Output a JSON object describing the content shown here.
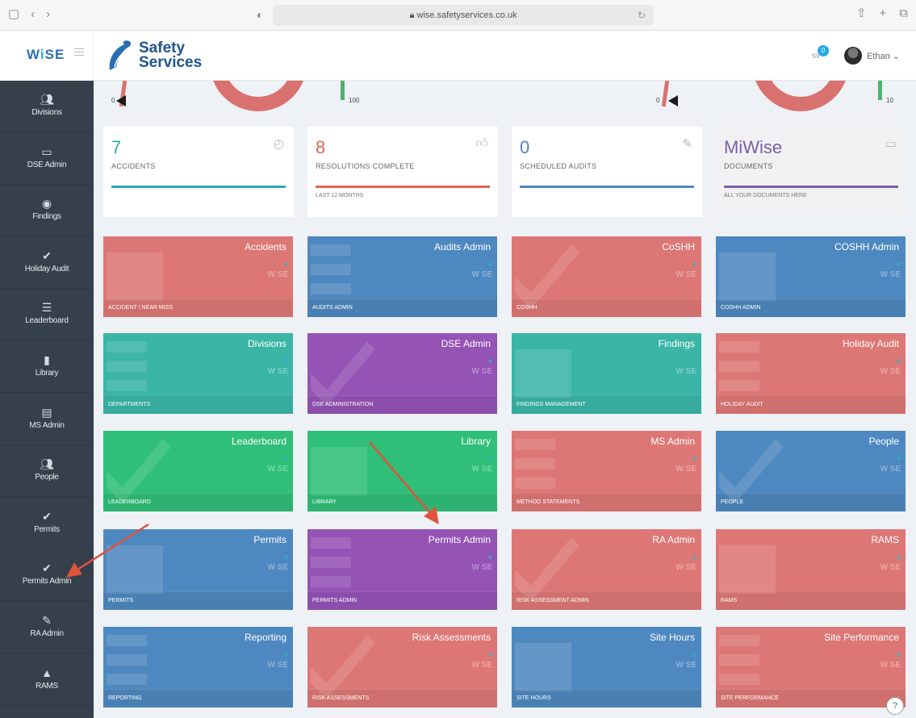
{
  "browser": {
    "url": "wise.safetyservices.co.uk",
    "lock_icon": "lock-icon"
  },
  "header": {
    "logo_text": "WiSE",
    "company_line1": "Safety",
    "company_line2": "Services",
    "notif_count": "0",
    "notif_label": "sv",
    "user_name": "Ethan ⌄"
  },
  "sidebar": {
    "items": [
      {
        "label": "Divisions",
        "icon": "people-icon"
      },
      {
        "label": "DSE Admin",
        "icon": "monitor-icon"
      },
      {
        "label": "Findings",
        "icon": "eye-icon"
      },
      {
        "label": "Holiday Audit",
        "icon": "check-icon"
      },
      {
        "label": "Leaderboard",
        "icon": "list-icon"
      },
      {
        "label": "Library",
        "icon": "book-icon"
      },
      {
        "label": "MS Admin",
        "icon": "document-icon"
      },
      {
        "label": "People",
        "icon": "people-icon"
      },
      {
        "label": "Permits",
        "icon": "check-icon"
      },
      {
        "label": "Permits Admin",
        "icon": "check-icon"
      },
      {
        "label": "RA Admin",
        "icon": "pencil-icon"
      },
      {
        "label": "RAMS",
        "icon": "warning-icon"
      }
    ]
  },
  "gauges": {
    "g1_min": "0",
    "g1_max": "100",
    "g2_min": "0",
    "g2_max": "10"
  },
  "stats": [
    {
      "value": "7",
      "label": "ACCIDENTS",
      "sub": "",
      "color": "#27a9b5"
    },
    {
      "value": "8",
      "label": "RESOLUTIONS COMPLETE",
      "sub": "LAST 12 MONTHS",
      "color": "#e2654f"
    },
    {
      "value": "0",
      "label": "SCHEDULED AUDITS",
      "sub": "",
      "color": "#4f86c3"
    },
    {
      "value": "MiWise",
      "label": "DOCUMENTS",
      "sub": "ALL YOUR DOCUMENTS HERE",
      "color": "#7b62a6"
    }
  ],
  "tiles": [
    {
      "title": "Accidents",
      "foot": "ACCIDENT / NEAR MISS",
      "color": "#dd7775"
    },
    {
      "title": "Audits Admin",
      "foot": "AUDITS ADMIN",
      "color": "#4e88c0"
    },
    {
      "title": "CoSHH",
      "foot": "COSHH",
      "color": "#dd7775"
    },
    {
      "title": "COSHH Admin",
      "foot": "COSHH ADMIN",
      "color": "#4e88c0"
    },
    {
      "title": "Divisions",
      "foot": "DEPARTMENTS",
      "color": "#3ab5a6"
    },
    {
      "title": "DSE Admin",
      "foot": "DSE ADMINISTRATION",
      "color": "#9453b5"
    },
    {
      "title": "Findings",
      "foot": "FINDINGS MANAGEMENT",
      "color": "#3ab5a6"
    },
    {
      "title": "Holiday Audit",
      "foot": "HOLIDAY AUDIT",
      "color": "#dd7775"
    },
    {
      "title": "Leaderboard",
      "foot": "LEADERBOARD",
      "color": "#2fbf79"
    },
    {
      "title": "Library",
      "foot": "LIBRARY",
      "color": "#2fbf79"
    },
    {
      "title": "MS Admin",
      "foot": "METHOD STATEMENTS",
      "color": "#dd7775"
    },
    {
      "title": "People",
      "foot": "PEOPLE",
      "color": "#4e88c0"
    },
    {
      "title": "Permits",
      "foot": "PERMITS",
      "color": "#4e88c0"
    },
    {
      "title": "Permits Admin",
      "foot": "PERMITS ADMIN",
      "color": "#9453b5"
    },
    {
      "title": "RA Admin",
      "foot": "RISK ASSESSMENT ADMIN",
      "color": "#dd7775"
    },
    {
      "title": "RAMS",
      "foot": "RAMS",
      "color": "#dd7775"
    },
    {
      "title": "Reporting",
      "foot": "REPORTING",
      "color": "#4e88c0"
    },
    {
      "title": "Risk Assessments",
      "foot": "RISK ASSESSMENTS",
      "color": "#dd7775"
    },
    {
      "title": "Site Hours",
      "foot": "SITE HOURS",
      "color": "#4e88c0"
    },
    {
      "title": "Site Performance",
      "foot": "SITE PERFORMANCE",
      "color": "#dd7775"
    }
  ],
  "tile_watermark": "W SE",
  "help_label": "?"
}
